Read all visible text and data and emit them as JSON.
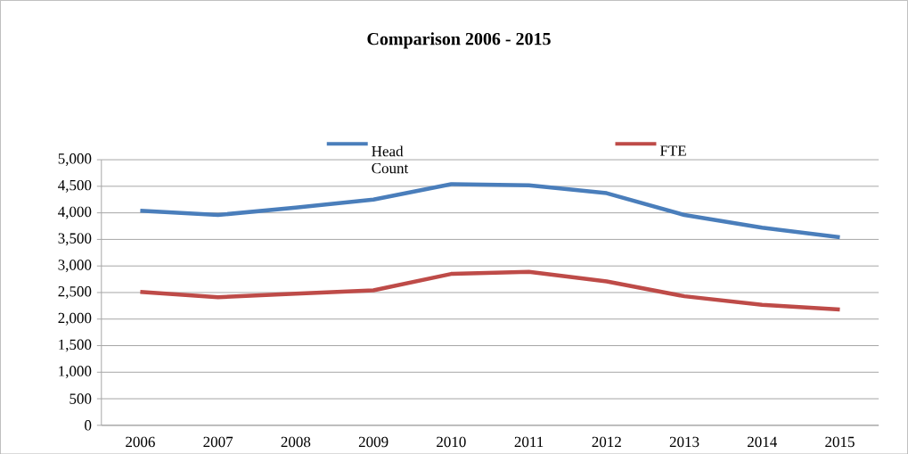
{
  "chart_data": {
    "type": "line",
    "title": "Comparison 2006 - 2015",
    "categories": [
      "2006",
      "2007",
      "2008",
      "2009",
      "2010",
      "2011",
      "2012",
      "2013",
      "2014",
      "2015"
    ],
    "series": [
      {
        "name": "Head Count",
        "color": "#4a7ebb",
        "values": [
          4040,
          3960,
          4100,
          4250,
          4540,
          4520,
          4370,
          3960,
          3720,
          3540
        ]
      },
      {
        "name": "FTE",
        "color": "#be4b48",
        "values": [
          2510,
          2410,
          2480,
          2540,
          2850,
          2890,
          2710,
          2430,
          2270,
          2180
        ]
      }
    ],
    "ylim": [
      0,
      5000
    ],
    "yticks": [
      {
        "value": 0,
        "label": "0"
      },
      {
        "value": 500,
        "label": "500"
      },
      {
        "value": 1000,
        "label": "1,000"
      },
      {
        "value": 1500,
        "label": "1,500"
      },
      {
        "value": 2000,
        "label": "2,000"
      },
      {
        "value": 2500,
        "label": "2,500"
      },
      {
        "value": 3000,
        "label": "3,000"
      },
      {
        "value": 3500,
        "label": "3,500"
      },
      {
        "value": 4000,
        "label": "4,000"
      },
      {
        "value": 4500,
        "label": "4,500"
      },
      {
        "value": 5000,
        "label": "5,000"
      }
    ],
    "grid": "y",
    "legend": "top",
    "marker": "none",
    "line_style": "solid"
  }
}
